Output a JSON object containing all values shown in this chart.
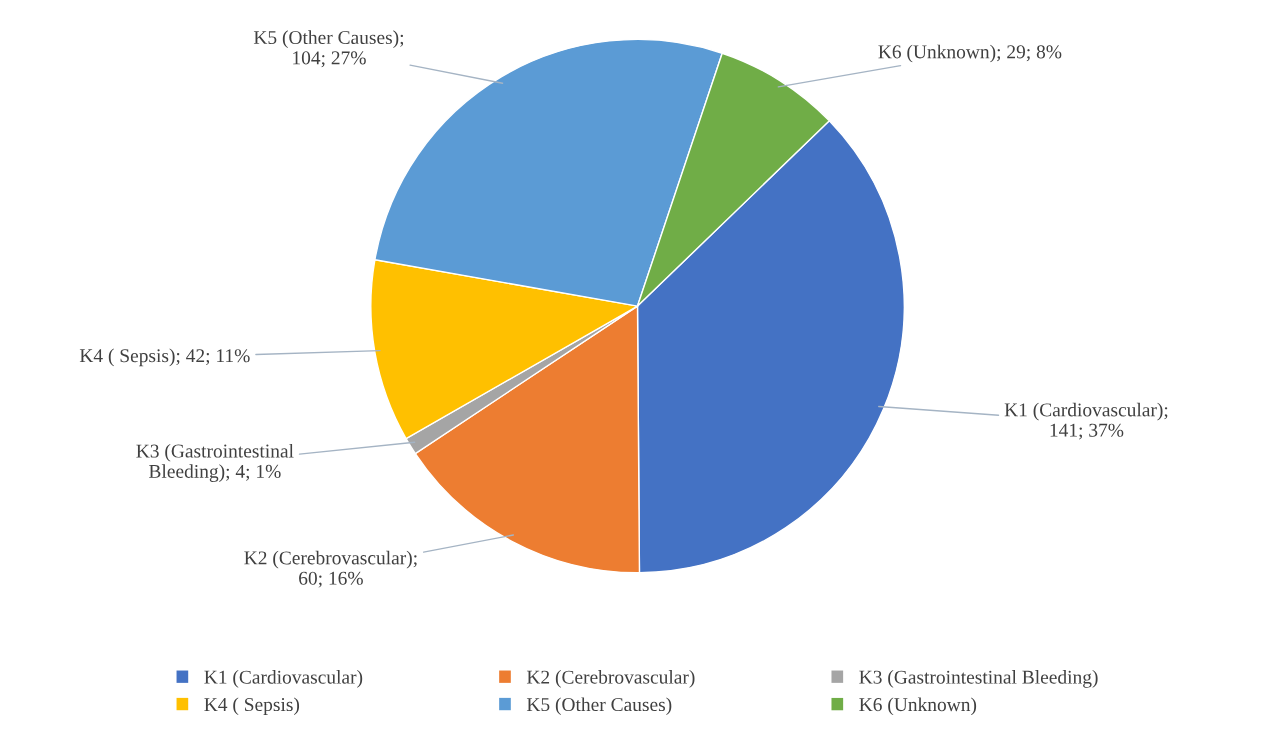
{
  "chart_data": {
    "type": "pie",
    "categories": [
      "K1 (Cardiovascular)",
      "K2 (Cerebrovascular)",
      "K3 (Gastrointestinal Bleeding)",
      "K4 ( Sepsis)",
      "K5 (Other Causes)",
      "K6 (Unknown)"
    ],
    "values": [
      141,
      60,
      4,
      42,
      104,
      29
    ],
    "colors": [
      "#4472c4",
      "#ed7d31",
      "#a5a5a5",
      "#ffc000",
      "#5b9bd5",
      "#70ad47"
    ],
    "value_labels": [
      "K1 (Cardiovascular);\n141; 37%",
      "K2 (Cerebrovascular);\n60; 16%",
      "K3 (Gastrointestinal\nBleeding); 4; 1%",
      "K4 ( Sepsis); 42; 11%",
      "K5 (Other Causes);\n104; 27%",
      "K6 (Unknown); 29; 8%"
    ],
    "legend": "bottom"
  }
}
